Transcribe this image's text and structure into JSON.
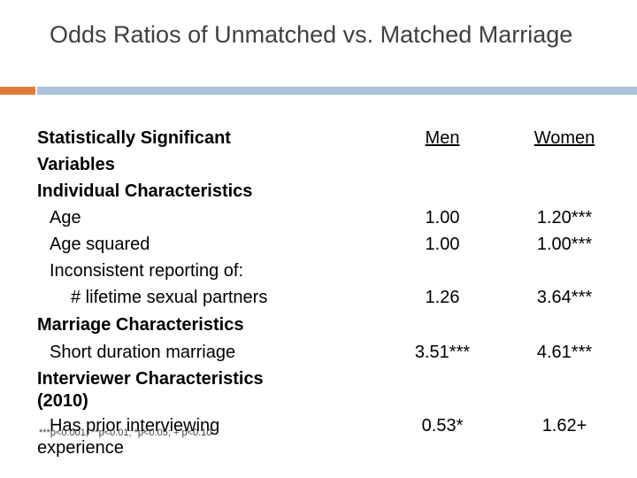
{
  "slide": {
    "title": "Odds Ratios of Unmatched vs. Matched Marriage",
    "accent_color": "#e07b39",
    "bar_color": "#aac3d8"
  },
  "table": {
    "header": {
      "label_line1": "Statistically Significant",
      "label_line2": "Variables",
      "men": "Men",
      "women": "Women"
    },
    "rows": [
      {
        "label": "Individual Characteristics",
        "men": "",
        "women": ""
      },
      {
        "label": "Age",
        "men": "1.00",
        "women": "1.20***"
      },
      {
        "label": "Age squared",
        "men": "1.00",
        "women": "1.00***"
      },
      {
        "label": "Inconsistent reporting of:",
        "men": "",
        "women": ""
      },
      {
        "label": "# lifetime sexual partners",
        "men": "1.26",
        "women": "3.64***"
      },
      {
        "label": "Marriage Characteristics",
        "men": "",
        "women": ""
      },
      {
        "label": "Short duration marriage",
        "men": "3.51***",
        "women": "4.61***"
      },
      {
        "label": "Interviewer Characteristics",
        "men": "",
        "women": ""
      },
      {
        "label": "(2010)",
        "men": "",
        "women": ""
      },
      {
        "label": "Has prior interviewing",
        "men": "0.53*",
        "women": "1.62+"
      },
      {
        "label": "experience",
        "men": "",
        "women": ""
      }
    ]
  },
  "footnote": "***p<0.001; **p<0.01; *p<0.05; + p<0.10"
}
